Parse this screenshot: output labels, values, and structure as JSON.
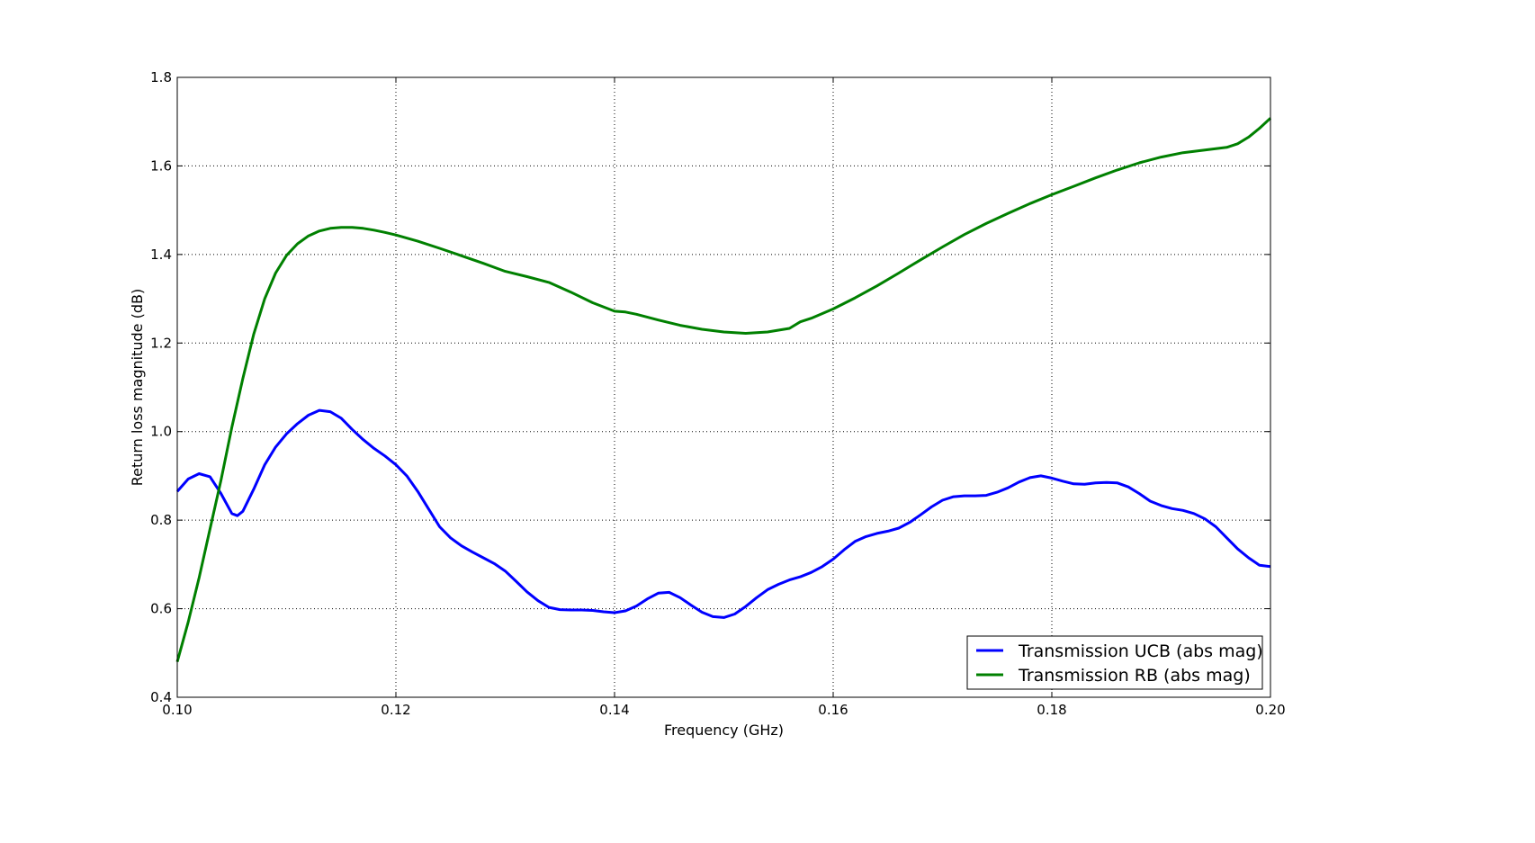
{
  "chart_data": {
    "type": "line",
    "title": "",
    "xlabel": "Frequency (GHz)",
    "ylabel": "Return loss magnitude (dB)",
    "xlim": [
      0.1,
      0.2
    ],
    "ylim": [
      0.4,
      1.8
    ],
    "x_ticks": [
      "0.10",
      "0.12",
      "0.14",
      "0.16",
      "0.18",
      "0.20"
    ],
    "y_ticks": [
      "0.4",
      "0.6",
      "0.8",
      "1.0",
      "1.2",
      "1.4",
      "1.6",
      "1.8"
    ],
    "grid": true,
    "legend_position": "lower-right",
    "series": [
      {
        "name": "Transmission UCB (abs mag)",
        "color": "#0000ff",
        "points": [
          [
            0.1,
            0.865
          ],
          [
            0.101,
            0.893
          ],
          [
            0.102,
            0.905
          ],
          [
            0.103,
            0.898
          ],
          [
            0.104,
            0.86
          ],
          [
            0.105,
            0.815
          ],
          [
            0.1055,
            0.81
          ],
          [
            0.106,
            0.82
          ],
          [
            0.107,
            0.87
          ],
          [
            0.108,
            0.925
          ],
          [
            0.109,
            0.965
          ],
          [
            0.11,
            0.995
          ],
          [
            0.111,
            1.018
          ],
          [
            0.112,
            1.037
          ],
          [
            0.113,
            1.048
          ],
          [
            0.114,
            1.045
          ],
          [
            0.115,
            1.03
          ],
          [
            0.116,
            1.005
          ],
          [
            0.117,
            0.982
          ],
          [
            0.118,
            0.962
          ],
          [
            0.119,
            0.945
          ],
          [
            0.12,
            0.925
          ],
          [
            0.121,
            0.9
          ],
          [
            0.122,
            0.865
          ],
          [
            0.123,
            0.825
          ],
          [
            0.124,
            0.785
          ],
          [
            0.125,
            0.76
          ],
          [
            0.126,
            0.742
          ],
          [
            0.127,
            0.728
          ],
          [
            0.128,
            0.715
          ],
          [
            0.129,
            0.702
          ],
          [
            0.13,
            0.685
          ],
          [
            0.131,
            0.662
          ],
          [
            0.132,
            0.638
          ],
          [
            0.133,
            0.618
          ],
          [
            0.134,
            0.603
          ],
          [
            0.135,
            0.598
          ],
          [
            0.136,
            0.597
          ],
          [
            0.137,
            0.597
          ],
          [
            0.138,
            0.596
          ],
          [
            0.139,
            0.593
          ],
          [
            0.14,
            0.591
          ],
          [
            0.141,
            0.595
          ],
          [
            0.142,
            0.606
          ],
          [
            0.143,
            0.622
          ],
          [
            0.144,
            0.635
          ],
          [
            0.145,
            0.637
          ],
          [
            0.146,
            0.625
          ],
          [
            0.147,
            0.608
          ],
          [
            0.148,
            0.592
          ],
          [
            0.149,
            0.582
          ],
          [
            0.15,
            0.58
          ],
          [
            0.151,
            0.588
          ],
          [
            0.152,
            0.605
          ],
          [
            0.153,
            0.625
          ],
          [
            0.154,
            0.643
          ],
          [
            0.155,
            0.655
          ],
          [
            0.156,
            0.665
          ],
          [
            0.157,
            0.672
          ],
          [
            0.158,
            0.682
          ],
          [
            0.159,
            0.695
          ],
          [
            0.16,
            0.712
          ],
          [
            0.161,
            0.733
          ],
          [
            0.162,
            0.752
          ],
          [
            0.163,
            0.763
          ],
          [
            0.164,
            0.77
          ],
          [
            0.165,
            0.775
          ],
          [
            0.166,
            0.782
          ],
          [
            0.167,
            0.795
          ],
          [
            0.168,
            0.812
          ],
          [
            0.169,
            0.83
          ],
          [
            0.17,
            0.845
          ],
          [
            0.171,
            0.853
          ],
          [
            0.172,
            0.855
          ],
          [
            0.173,
            0.855
          ],
          [
            0.174,
            0.856
          ],
          [
            0.175,
            0.863
          ],
          [
            0.176,
            0.873
          ],
          [
            0.177,
            0.886
          ],
          [
            0.178,
            0.896
          ],
          [
            0.179,
            0.9
          ],
          [
            0.18,
            0.895
          ],
          [
            0.181,
            0.888
          ],
          [
            0.182,
            0.882
          ],
          [
            0.183,
            0.881
          ],
          [
            0.184,
            0.884
          ],
          [
            0.185,
            0.885
          ],
          [
            0.186,
            0.884
          ],
          [
            0.187,
            0.875
          ],
          [
            0.188,
            0.86
          ],
          [
            0.189,
            0.843
          ],
          [
            0.19,
            0.833
          ],
          [
            0.191,
            0.826
          ],
          [
            0.192,
            0.822
          ],
          [
            0.193,
            0.815
          ],
          [
            0.194,
            0.803
          ],
          [
            0.195,
            0.785
          ],
          [
            0.196,
            0.76
          ],
          [
            0.197,
            0.735
          ],
          [
            0.198,
            0.715
          ],
          [
            0.199,
            0.698
          ],
          [
            0.2,
            0.695
          ]
        ]
      },
      {
        "name": "Transmission RB (abs mag)",
        "color": "#008000",
        "points": [
          [
            0.1,
            0.48
          ],
          [
            0.101,
            0.57
          ],
          [
            0.102,
            0.67
          ],
          [
            0.103,
            0.78
          ],
          [
            0.104,
            0.89
          ],
          [
            0.105,
            1.01
          ],
          [
            0.106,
            1.12
          ],
          [
            0.107,
            1.22
          ],
          [
            0.108,
            1.3
          ],
          [
            0.109,
            1.358
          ],
          [
            0.11,
            1.398
          ],
          [
            0.111,
            1.424
          ],
          [
            0.112,
            1.442
          ],
          [
            0.113,
            1.453
          ],
          [
            0.114,
            1.459
          ],
          [
            0.115,
            1.461
          ],
          [
            0.116,
            1.461
          ],
          [
            0.117,
            1.459
          ],
          [
            0.118,
            1.455
          ],
          [
            0.119,
            1.45
          ],
          [
            0.12,
            1.444
          ],
          [
            0.122,
            1.43
          ],
          [
            0.124,
            1.414
          ],
          [
            0.126,
            1.397
          ],
          [
            0.128,
            1.38
          ],
          [
            0.13,
            1.362
          ],
          [
            0.132,
            1.35
          ],
          [
            0.134,
            1.337
          ],
          [
            0.136,
            1.315
          ],
          [
            0.138,
            1.291
          ],
          [
            0.14,
            1.272
          ],
          [
            0.141,
            1.27
          ],
          [
            0.142,
            1.265
          ],
          [
            0.144,
            1.252
          ],
          [
            0.146,
            1.24
          ],
          [
            0.148,
            1.231
          ],
          [
            0.15,
            1.225
          ],
          [
            0.152,
            1.222
          ],
          [
            0.154,
            1.225
          ],
          [
            0.156,
            1.233
          ],
          [
            0.157,
            1.248
          ],
          [
            0.158,
            1.256
          ],
          [
            0.16,
            1.277
          ],
          [
            0.162,
            1.302
          ],
          [
            0.164,
            1.329
          ],
          [
            0.166,
            1.358
          ],
          [
            0.168,
            1.388
          ],
          [
            0.17,
            1.417
          ],
          [
            0.172,
            1.445
          ],
          [
            0.174,
            1.47
          ],
          [
            0.176,
            1.493
          ],
          [
            0.178,
            1.515
          ],
          [
            0.18,
            1.535
          ],
          [
            0.182,
            1.554
          ],
          [
            0.184,
            1.573
          ],
          [
            0.186,
            1.591
          ],
          [
            0.188,
            1.607
          ],
          [
            0.19,
            1.62
          ],
          [
            0.192,
            1.63
          ],
          [
            0.194,
            1.636
          ],
          [
            0.196,
            1.642
          ],
          [
            0.197,
            1.65
          ],
          [
            0.198,
            1.665
          ],
          [
            0.199,
            1.685
          ],
          [
            0.2,
            1.708
          ]
        ]
      }
    ]
  }
}
